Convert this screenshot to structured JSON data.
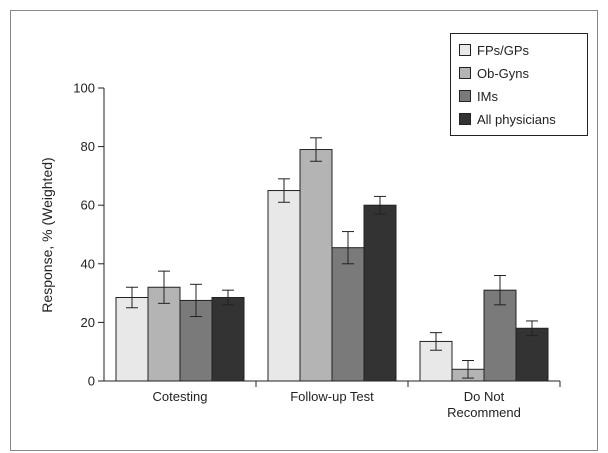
{
  "chart_data": {
    "type": "bar",
    "title": "",
    "xlabel": "",
    "ylabel": "Response, % (Weighted)",
    "ylim": [
      0,
      100
    ],
    "yticks": [
      0,
      20,
      40,
      60,
      80,
      100
    ],
    "grid": false,
    "legend_position": "top-right",
    "categories": [
      [
        "Cotesting"
      ],
      [
        "Follow-up Test"
      ],
      [
        "Do Not",
        "Recommend"
      ]
    ],
    "series": [
      {
        "name": "FPs/GPs",
        "color": "#e8e8e8",
        "values": [
          28.5,
          65,
          13.5
        ],
        "errors": [
          3.5,
          4,
          3
        ]
      },
      {
        "name": "Ob-Gyns",
        "color": "#b4b4b4",
        "values": [
          32,
          79,
          4
        ],
        "errors": [
          5.5,
          4,
          3
        ]
      },
      {
        "name": "IMs",
        "color": "#7a7a7a",
        "values": [
          27.5,
          45.5,
          31
        ],
        "errors": [
          5.5,
          5.5,
          5
        ]
      },
      {
        "name": "All physicians",
        "color": "#333333",
        "values": [
          28.5,
          60,
          18
        ],
        "errors": [
          2.5,
          3,
          2.5
        ]
      }
    ]
  }
}
